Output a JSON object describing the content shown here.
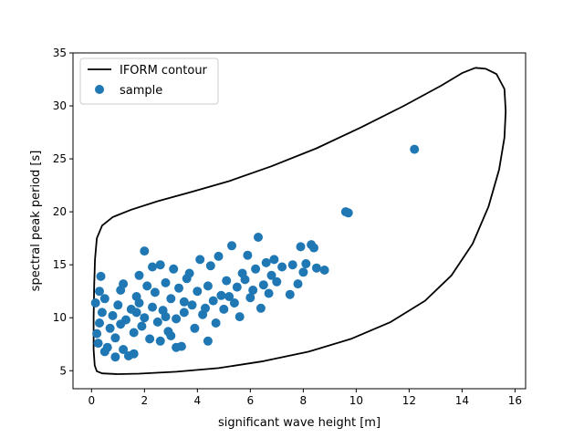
{
  "chart_data": {
    "type": "scatter",
    "xlabel": "significant wave height [m]",
    "ylabel": "spectral peak period [s]",
    "xlim": [
      -0.7,
      16.4
    ],
    "ylim": [
      3.3,
      35.0
    ],
    "xticks": [
      0,
      2,
      4,
      6,
      8,
      10,
      12,
      14,
      16
    ],
    "yticks": [
      5,
      10,
      15,
      20,
      25,
      30,
      35
    ],
    "grid": false,
    "legend": {
      "placement": "top-left",
      "entries": [
        "IFORM contour",
        "sample"
      ]
    },
    "series": [
      {
        "name": "IFORM contour",
        "kind": "line",
        "color": "#000000",
        "points": [
          [
            14.5,
            33.6
          ],
          [
            14.9,
            33.5
          ],
          [
            15.3,
            33.0
          ],
          [
            15.6,
            31.6
          ],
          [
            15.65,
            29.5
          ],
          [
            15.6,
            27.0
          ],
          [
            15.4,
            24.0
          ],
          [
            15.0,
            20.5
          ],
          [
            14.4,
            17.0
          ],
          [
            13.6,
            14.0
          ],
          [
            12.6,
            11.6
          ],
          [
            11.3,
            9.6
          ],
          [
            9.8,
            8.0
          ],
          [
            8.2,
            6.8
          ],
          [
            6.5,
            5.9
          ],
          [
            4.8,
            5.25
          ],
          [
            3.2,
            4.9
          ],
          [
            1.8,
            4.72
          ],
          [
            1.0,
            4.68
          ],
          [
            0.4,
            4.75
          ],
          [
            0.2,
            4.95
          ],
          [
            0.12,
            5.5
          ],
          [
            0.08,
            7.0
          ],
          [
            0.08,
            10.0
          ],
          [
            0.1,
            13.0
          ],
          [
            0.13,
            15.5
          ],
          [
            0.2,
            17.5
          ],
          [
            0.4,
            18.7
          ],
          [
            0.8,
            19.5
          ],
          [
            1.5,
            20.2
          ],
          [
            2.5,
            21.0
          ],
          [
            3.8,
            21.9
          ],
          [
            5.2,
            22.9
          ],
          [
            6.8,
            24.3
          ],
          [
            8.5,
            26.0
          ],
          [
            10.2,
            28.0
          ],
          [
            11.8,
            30.0
          ],
          [
            13.2,
            31.9
          ],
          [
            14.0,
            33.1
          ],
          [
            14.5,
            33.6
          ]
        ]
      },
      {
        "name": "sample",
        "kind": "scatter",
        "color": "#1f77b4",
        "points": [
          [
            0.3,
            9.5
          ],
          [
            0.2,
            8.5
          ],
          [
            0.4,
            10.5
          ],
          [
            0.5,
            11.8
          ],
          [
            0.3,
            12.5
          ],
          [
            0.35,
            13.9
          ],
          [
            0.6,
            7.2
          ],
          [
            0.7,
            9.0
          ],
          [
            0.8,
            10.2
          ],
          [
            0.9,
            8.1
          ],
          [
            1.0,
            11.2
          ],
          [
            1.1,
            12.6
          ],
          [
            1.2,
            7.0
          ],
          [
            1.3,
            9.8
          ],
          [
            1.5,
            10.8
          ],
          [
            1.6,
            8.6
          ],
          [
            1.7,
            12.0
          ],
          [
            1.8,
            11.4
          ],
          [
            1.9,
            9.2
          ],
          [
            2.0,
            16.3
          ],
          [
            2.0,
            10.0
          ],
          [
            2.1,
            13.0
          ],
          [
            2.2,
            8.0
          ],
          [
            2.3,
            11.0
          ],
          [
            2.4,
            12.4
          ],
          [
            2.5,
            9.6
          ],
          [
            2.6,
            15.0
          ],
          [
            2.7,
            10.7
          ],
          [
            2.8,
            13.3
          ],
          [
            2.9,
            8.7
          ],
          [
            3.0,
            11.8
          ],
          [
            3.1,
            14.6
          ],
          [
            3.2,
            9.9
          ],
          [
            3.3,
            12.8
          ],
          [
            3.4,
            7.3
          ],
          [
            3.5,
            10.5
          ],
          [
            3.6,
            13.7
          ],
          [
            3.8,
            11.2
          ],
          [
            3.9,
            9.0
          ],
          [
            4.0,
            12.5
          ],
          [
            4.1,
            15.5
          ],
          [
            4.2,
            10.3
          ],
          [
            4.4,
            13.0
          ],
          [
            4.5,
            14.9
          ],
          [
            4.6,
            11.6
          ],
          [
            4.7,
            9.5
          ],
          [
            4.8,
            15.8
          ],
          [
            4.9,
            12.1
          ],
          [
            5.0,
            10.8
          ],
          [
            5.1,
            13.5
          ],
          [
            5.3,
            16.8
          ],
          [
            5.4,
            11.4
          ],
          [
            5.5,
            12.9
          ],
          [
            5.6,
            10.1
          ],
          [
            5.7,
            14.2
          ],
          [
            5.8,
            13.6
          ],
          [
            5.9,
            15.9
          ],
          [
            6.0,
            11.9
          ],
          [
            6.1,
            12.6
          ],
          [
            6.2,
            14.6
          ],
          [
            6.3,
            17.6
          ],
          [
            6.4,
            10.9
          ],
          [
            6.5,
            13.1
          ],
          [
            6.6,
            15.2
          ],
          [
            6.7,
            12.3
          ],
          [
            6.8,
            14.0
          ],
          [
            6.9,
            15.5
          ],
          [
            7.0,
            13.4
          ],
          [
            7.2,
            14.8
          ],
          [
            7.5,
            12.2
          ],
          [
            7.6,
            15.0
          ],
          [
            7.8,
            13.2
          ],
          [
            7.9,
            16.7
          ],
          [
            8.0,
            14.3
          ],
          [
            8.1,
            15.1
          ],
          [
            8.3,
            16.9
          ],
          [
            8.4,
            16.6
          ],
          [
            8.5,
            14.7
          ],
          [
            8.8,
            14.5
          ],
          [
            9.6,
            20.0
          ],
          [
            9.7,
            19.9
          ],
          [
            12.2,
            25.9
          ],
          [
            1.4,
            6.4
          ],
          [
            0.9,
            6.3
          ],
          [
            2.6,
            7.8
          ],
          [
            3.2,
            7.2
          ],
          [
            4.4,
            7.8
          ],
          [
            0.15,
            11.4
          ],
          [
            0.25,
            7.6
          ],
          [
            1.2,
            13.2
          ],
          [
            1.8,
            14.0
          ],
          [
            2.3,
            14.8
          ],
          [
            3.7,
            14.2
          ],
          [
            1.6,
            6.6
          ],
          [
            0.5,
            6.8
          ],
          [
            3.0,
            8.3
          ],
          [
            1.1,
            9.4
          ],
          [
            2.8,
            10.1
          ],
          [
            3.5,
            11.5
          ],
          [
            4.3,
            10.9
          ],
          [
            5.2,
            12.0
          ],
          [
            1.7,
            10.5
          ]
        ]
      }
    ]
  }
}
